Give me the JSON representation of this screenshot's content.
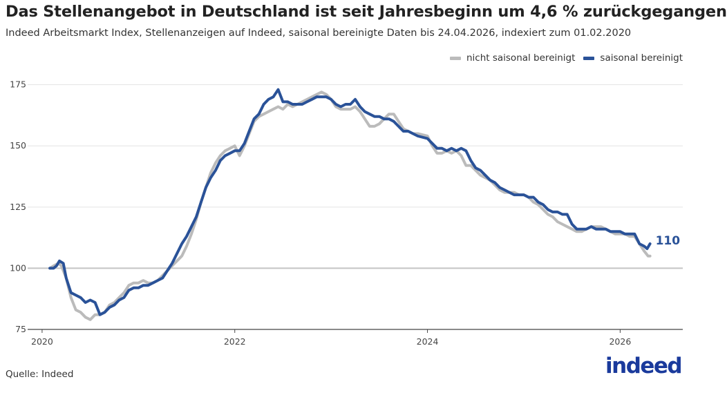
{
  "chart_data": {
    "type": "line",
    "title": "Das Stellenangebot in Deutschland ist seit Jahresbeginn um 4,6 % zurückgegangen",
    "subtitle": "Indeed Arbeitsmarkt Index, Stellenanzeigen auf Indeed, saisonal bereinigte Daten bis 24.04.2026, indexiert zum 01.02.2020",
    "xlabel": "",
    "ylabel": "",
    "x_ticks": [
      "2020",
      "2022",
      "2024",
      "2026"
    ],
    "y_ticks": [
      75,
      100,
      125,
      150,
      175
    ],
    "ylim": [
      75,
      178
    ],
    "xlim": [
      2019.85,
      2026.65
    ],
    "grid": true,
    "baseline": 100,
    "legend_position": "top-right",
    "end_label": "110",
    "series": [
      {
        "name": "nicht saisonal bereinigt",
        "color": "#bbbbbb",
        "points": [
          [
            2020.08,
            100
          ],
          [
            2020.12,
            101
          ],
          [
            2020.17,
            102
          ],
          [
            2020.2,
            101
          ],
          [
            2020.25,
            96
          ],
          [
            2020.3,
            88
          ],
          [
            2020.35,
            83
          ],
          [
            2020.4,
            82
          ],
          [
            2020.45,
            80
          ],
          [
            2020.5,
            79
          ],
          [
            2020.55,
            81
          ],
          [
            2020.6,
            81
          ],
          [
            2020.65,
            82
          ],
          [
            2020.7,
            85
          ],
          [
            2020.75,
            86
          ],
          [
            2020.8,
            88
          ],
          [
            2020.85,
            90
          ],
          [
            2020.9,
            93
          ],
          [
            2020.95,
            94
          ],
          [
            2021.0,
            94
          ],
          [
            2021.05,
            95
          ],
          [
            2021.1,
            94
          ],
          [
            2021.15,
            94
          ],
          [
            2021.2,
            95
          ],
          [
            2021.25,
            97
          ],
          [
            2021.3,
            99
          ],
          [
            2021.35,
            101
          ],
          [
            2021.4,
            103
          ],
          [
            2021.45,
            105
          ],
          [
            2021.5,
            109
          ],
          [
            2021.55,
            114
          ],
          [
            2021.6,
            120
          ],
          [
            2021.65,
            127
          ],
          [
            2021.7,
            133
          ],
          [
            2021.75,
            139
          ],
          [
            2021.8,
            143
          ],
          [
            2021.85,
            146
          ],
          [
            2021.9,
            148
          ],
          [
            2021.95,
            149
          ],
          [
            2022.0,
            150
          ],
          [
            2022.05,
            146
          ],
          [
            2022.1,
            150
          ],
          [
            2022.15,
            155
          ],
          [
            2022.2,
            160
          ],
          [
            2022.25,
            162
          ],
          [
            2022.3,
            163
          ],
          [
            2022.35,
            164
          ],
          [
            2022.4,
            165
          ],
          [
            2022.45,
            166
          ],
          [
            2022.5,
            165
          ],
          [
            2022.55,
            167
          ],
          [
            2022.6,
            166
          ],
          [
            2022.65,
            167
          ],
          [
            2022.7,
            168
          ],
          [
            2022.75,
            169
          ],
          [
            2022.8,
            170
          ],
          [
            2022.85,
            171
          ],
          [
            2022.9,
            172
          ],
          [
            2022.95,
            171
          ],
          [
            2023.0,
            169
          ],
          [
            2023.05,
            166
          ],
          [
            2023.1,
            165
          ],
          [
            2023.15,
            165
          ],
          [
            2023.2,
            165
          ],
          [
            2023.25,
            166
          ],
          [
            2023.3,
            164
          ],
          [
            2023.35,
            161
          ],
          [
            2023.4,
            158
          ],
          [
            2023.45,
            158
          ],
          [
            2023.5,
            159
          ],
          [
            2023.55,
            161
          ],
          [
            2023.6,
            163
          ],
          [
            2023.65,
            163
          ],
          [
            2023.7,
            160
          ],
          [
            2023.75,
            157
          ],
          [
            2023.8,
            156
          ],
          [
            2023.85,
            155
          ],
          [
            2023.9,
            155
          ],
          [
            2024.0,
            154
          ],
          [
            2024.05,
            150
          ],
          [
            2024.1,
            147
          ],
          [
            2024.15,
            147
          ],
          [
            2024.2,
            148
          ],
          [
            2024.25,
            147
          ],
          [
            2024.3,
            148
          ],
          [
            2024.35,
            146
          ],
          [
            2024.4,
            142
          ],
          [
            2024.45,
            142
          ],
          [
            2024.5,
            140
          ],
          [
            2024.55,
            138
          ],
          [
            2024.6,
            137
          ],
          [
            2024.65,
            136
          ],
          [
            2024.7,
            134
          ],
          [
            2024.75,
            132
          ],
          [
            2024.8,
            131
          ],
          [
            2024.85,
            131
          ],
          [
            2024.9,
            131
          ],
          [
            2024.95,
            130
          ],
          [
            2025.0,
            130
          ],
          [
            2025.05,
            129
          ],
          [
            2025.1,
            127
          ],
          [
            2025.15,
            126
          ],
          [
            2025.2,
            124
          ],
          [
            2025.25,
            122
          ],
          [
            2025.3,
            121
          ],
          [
            2025.35,
            119
          ],
          [
            2025.4,
            118
          ],
          [
            2025.45,
            117
          ],
          [
            2025.5,
            116
          ],
          [
            2025.55,
            115
          ],
          [
            2025.6,
            115
          ],
          [
            2025.65,
            116
          ],
          [
            2025.7,
            117
          ],
          [
            2025.75,
            117
          ],
          [
            2025.8,
            117
          ],
          [
            2025.85,
            116
          ],
          [
            2025.9,
            115
          ],
          [
            2025.95,
            114
          ],
          [
            2026.0,
            114
          ],
          [
            2026.05,
            114
          ],
          [
            2026.1,
            113
          ],
          [
            2026.15,
            113
          ],
          [
            2026.2,
            110
          ],
          [
            2026.25,
            107
          ],
          [
            2026.29,
            105
          ],
          [
            2026.31,
            105
          ]
        ]
      },
      {
        "name": "saisonal bereinigt",
        "color": "#2a5298",
        "points": [
          [
            2020.08,
            100
          ],
          [
            2020.12,
            100
          ],
          [
            2020.15,
            101
          ],
          [
            2020.18,
            103
          ],
          [
            2020.22,
            102
          ],
          [
            2020.25,
            96
          ],
          [
            2020.3,
            90
          ],
          [
            2020.35,
            89
          ],
          [
            2020.4,
            88
          ],
          [
            2020.45,
            86
          ],
          [
            2020.5,
            87
          ],
          [
            2020.55,
            86
          ],
          [
            2020.6,
            81
          ],
          [
            2020.65,
            82
          ],
          [
            2020.7,
            84
          ],
          [
            2020.75,
            85
          ],
          [
            2020.8,
            87
          ],
          [
            2020.85,
            88
          ],
          [
            2020.9,
            91
          ],
          [
            2020.95,
            92
          ],
          [
            2021.0,
            92
          ],
          [
            2021.05,
            93
          ],
          [
            2021.1,
            93
          ],
          [
            2021.15,
            94
          ],
          [
            2021.2,
            95
          ],
          [
            2021.25,
            96
          ],
          [
            2021.3,
            99
          ],
          [
            2021.35,
            102
          ],
          [
            2021.4,
            106
          ],
          [
            2021.45,
            110
          ],
          [
            2021.5,
            113
          ],
          [
            2021.55,
            117
          ],
          [
            2021.6,
            121
          ],
          [
            2021.65,
            127
          ],
          [
            2021.7,
            133
          ],
          [
            2021.75,
            137
          ],
          [
            2021.8,
            140
          ],
          [
            2021.85,
            144
          ],
          [
            2021.9,
            146
          ],
          [
            2021.95,
            147
          ],
          [
            2022.0,
            148
          ],
          [
            2022.05,
            148
          ],
          [
            2022.1,
            151
          ],
          [
            2022.15,
            156
          ],
          [
            2022.2,
            161
          ],
          [
            2022.25,
            163
          ],
          [
            2022.3,
            167
          ],
          [
            2022.35,
            169
          ],
          [
            2022.4,
            170
          ],
          [
            2022.45,
            173
          ],
          [
            2022.5,
            168
          ],
          [
            2022.55,
            168
          ],
          [
            2022.6,
            167
          ],
          [
            2022.65,
            167
          ],
          [
            2022.7,
            167
          ],
          [
            2022.75,
            168
          ],
          [
            2022.8,
            169
          ],
          [
            2022.85,
            170
          ],
          [
            2022.9,
            170
          ],
          [
            2022.95,
            170
          ],
          [
            2023.0,
            169
          ],
          [
            2023.05,
            167
          ],
          [
            2023.1,
            166
          ],
          [
            2023.15,
            167
          ],
          [
            2023.2,
            167
          ],
          [
            2023.25,
            169
          ],
          [
            2023.3,
            166
          ],
          [
            2023.35,
            164
          ],
          [
            2023.4,
            163
          ],
          [
            2023.45,
            162
          ],
          [
            2023.5,
            162
          ],
          [
            2023.55,
            161
          ],
          [
            2023.6,
            161
          ],
          [
            2023.65,
            160
          ],
          [
            2023.7,
            158
          ],
          [
            2023.75,
            156
          ],
          [
            2023.8,
            156
          ],
          [
            2023.85,
            155
          ],
          [
            2023.9,
            154
          ],
          [
            2024.0,
            153
          ],
          [
            2024.05,
            151
          ],
          [
            2024.1,
            149
          ],
          [
            2024.15,
            149
          ],
          [
            2024.2,
            148
          ],
          [
            2024.25,
            149
          ],
          [
            2024.3,
            148
          ],
          [
            2024.35,
            149
          ],
          [
            2024.4,
            148
          ],
          [
            2024.45,
            144
          ],
          [
            2024.5,
            141
          ],
          [
            2024.55,
            140
          ],
          [
            2024.6,
            138
          ],
          [
            2024.65,
            136
          ],
          [
            2024.7,
            135
          ],
          [
            2024.75,
            133
          ],
          [
            2024.8,
            132
          ],
          [
            2024.85,
            131
          ],
          [
            2024.9,
            130
          ],
          [
            2024.95,
            130
          ],
          [
            2025.0,
            130
          ],
          [
            2025.05,
            129
          ],
          [
            2025.1,
            129
          ],
          [
            2025.15,
            127
          ],
          [
            2025.2,
            126
          ],
          [
            2025.25,
            124
          ],
          [
            2025.3,
            123
          ],
          [
            2025.35,
            123
          ],
          [
            2025.4,
            122
          ],
          [
            2025.45,
            122
          ],
          [
            2025.5,
            118
          ],
          [
            2025.55,
            116
          ],
          [
            2025.6,
            116
          ],
          [
            2025.65,
            116
          ],
          [
            2025.7,
            117
          ],
          [
            2025.75,
            116
          ],
          [
            2025.8,
            116
          ],
          [
            2025.85,
            116
          ],
          [
            2025.9,
            115
          ],
          [
            2025.95,
            115
          ],
          [
            2026.0,
            115
          ],
          [
            2026.05,
            114
          ],
          [
            2026.1,
            114
          ],
          [
            2026.15,
            114
          ],
          [
            2026.2,
            110
          ],
          [
            2026.25,
            109
          ],
          [
            2026.28,
            108
          ],
          [
            2026.31,
            110
          ]
        ]
      }
    ]
  },
  "source": "Quelle: Indeed",
  "logo_text": "indeed"
}
